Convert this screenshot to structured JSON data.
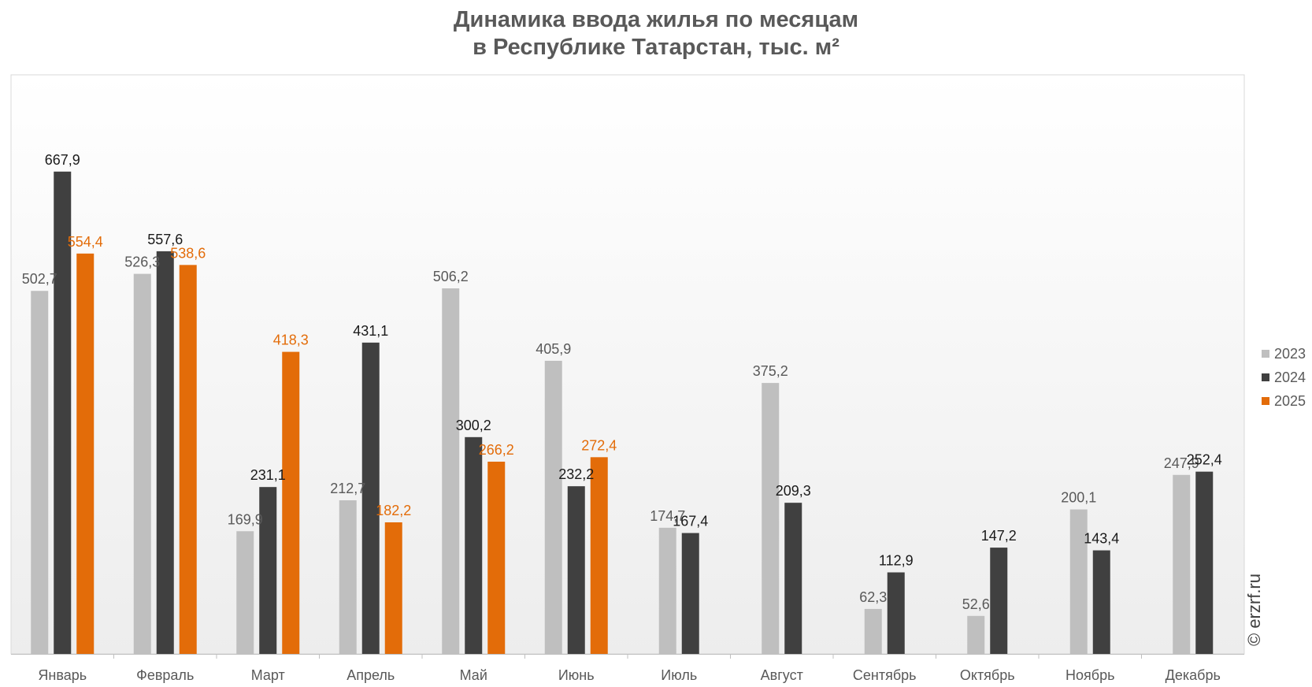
{
  "chart_data": {
    "type": "bar",
    "title_lines": [
      "Динамика ввода жилья по месяцам",
      "в Республике Татарстан, тыс. м²"
    ],
    "categories": [
      "Январь",
      "Февраль",
      "Март",
      "Апрель",
      "Май",
      "Июнь",
      "Июль",
      "Август",
      "Сентябрь",
      "Октябрь",
      "Ноябрь",
      "Декабрь"
    ],
    "series": [
      {
        "name": "2023",
        "color": "#bfbfbf",
        "values": [
          502.7,
          526.3,
          169.9,
          212.7,
          506.2,
          405.9,
          174.7,
          375.2,
          62.3,
          52.6,
          200.1,
          247.9
        ],
        "labels": [
          "502,7",
          "526,3",
          "169,9",
          "212,7",
          "506,2",
          "405,9",
          "174,7",
          "375,2",
          "62,3",
          "52,6",
          "200,1",
          "247,9"
        ]
      },
      {
        "name": "2024",
        "color": "#404040",
        "values": [
          667.9,
          557.6,
          231.1,
          431.1,
          300.2,
          232.2,
          167.4,
          209.3,
          112.9,
          147.2,
          143.4,
          252.4
        ],
        "labels": [
          "667,9",
          "557,6",
          "231,1",
          "431,1",
          "300,2",
          "232,2",
          "167,4",
          "209,3",
          "112,9",
          "147,2",
          "143,4",
          "252,4"
        ]
      },
      {
        "name": "2025",
        "color": "#e36c09",
        "values": [
          554.4,
          538.6,
          418.3,
          182.2,
          266.2,
          272.4,
          null,
          null,
          null,
          null,
          null,
          null
        ],
        "labels": [
          "554,4",
          "538,6",
          "418,3",
          "182,2",
          "266,2",
          "272,4",
          null,
          null,
          null,
          null,
          null,
          null
        ]
      }
    ],
    "legend_position": "right",
    "grid": false
  },
  "watermark": "© erzrf.ru"
}
